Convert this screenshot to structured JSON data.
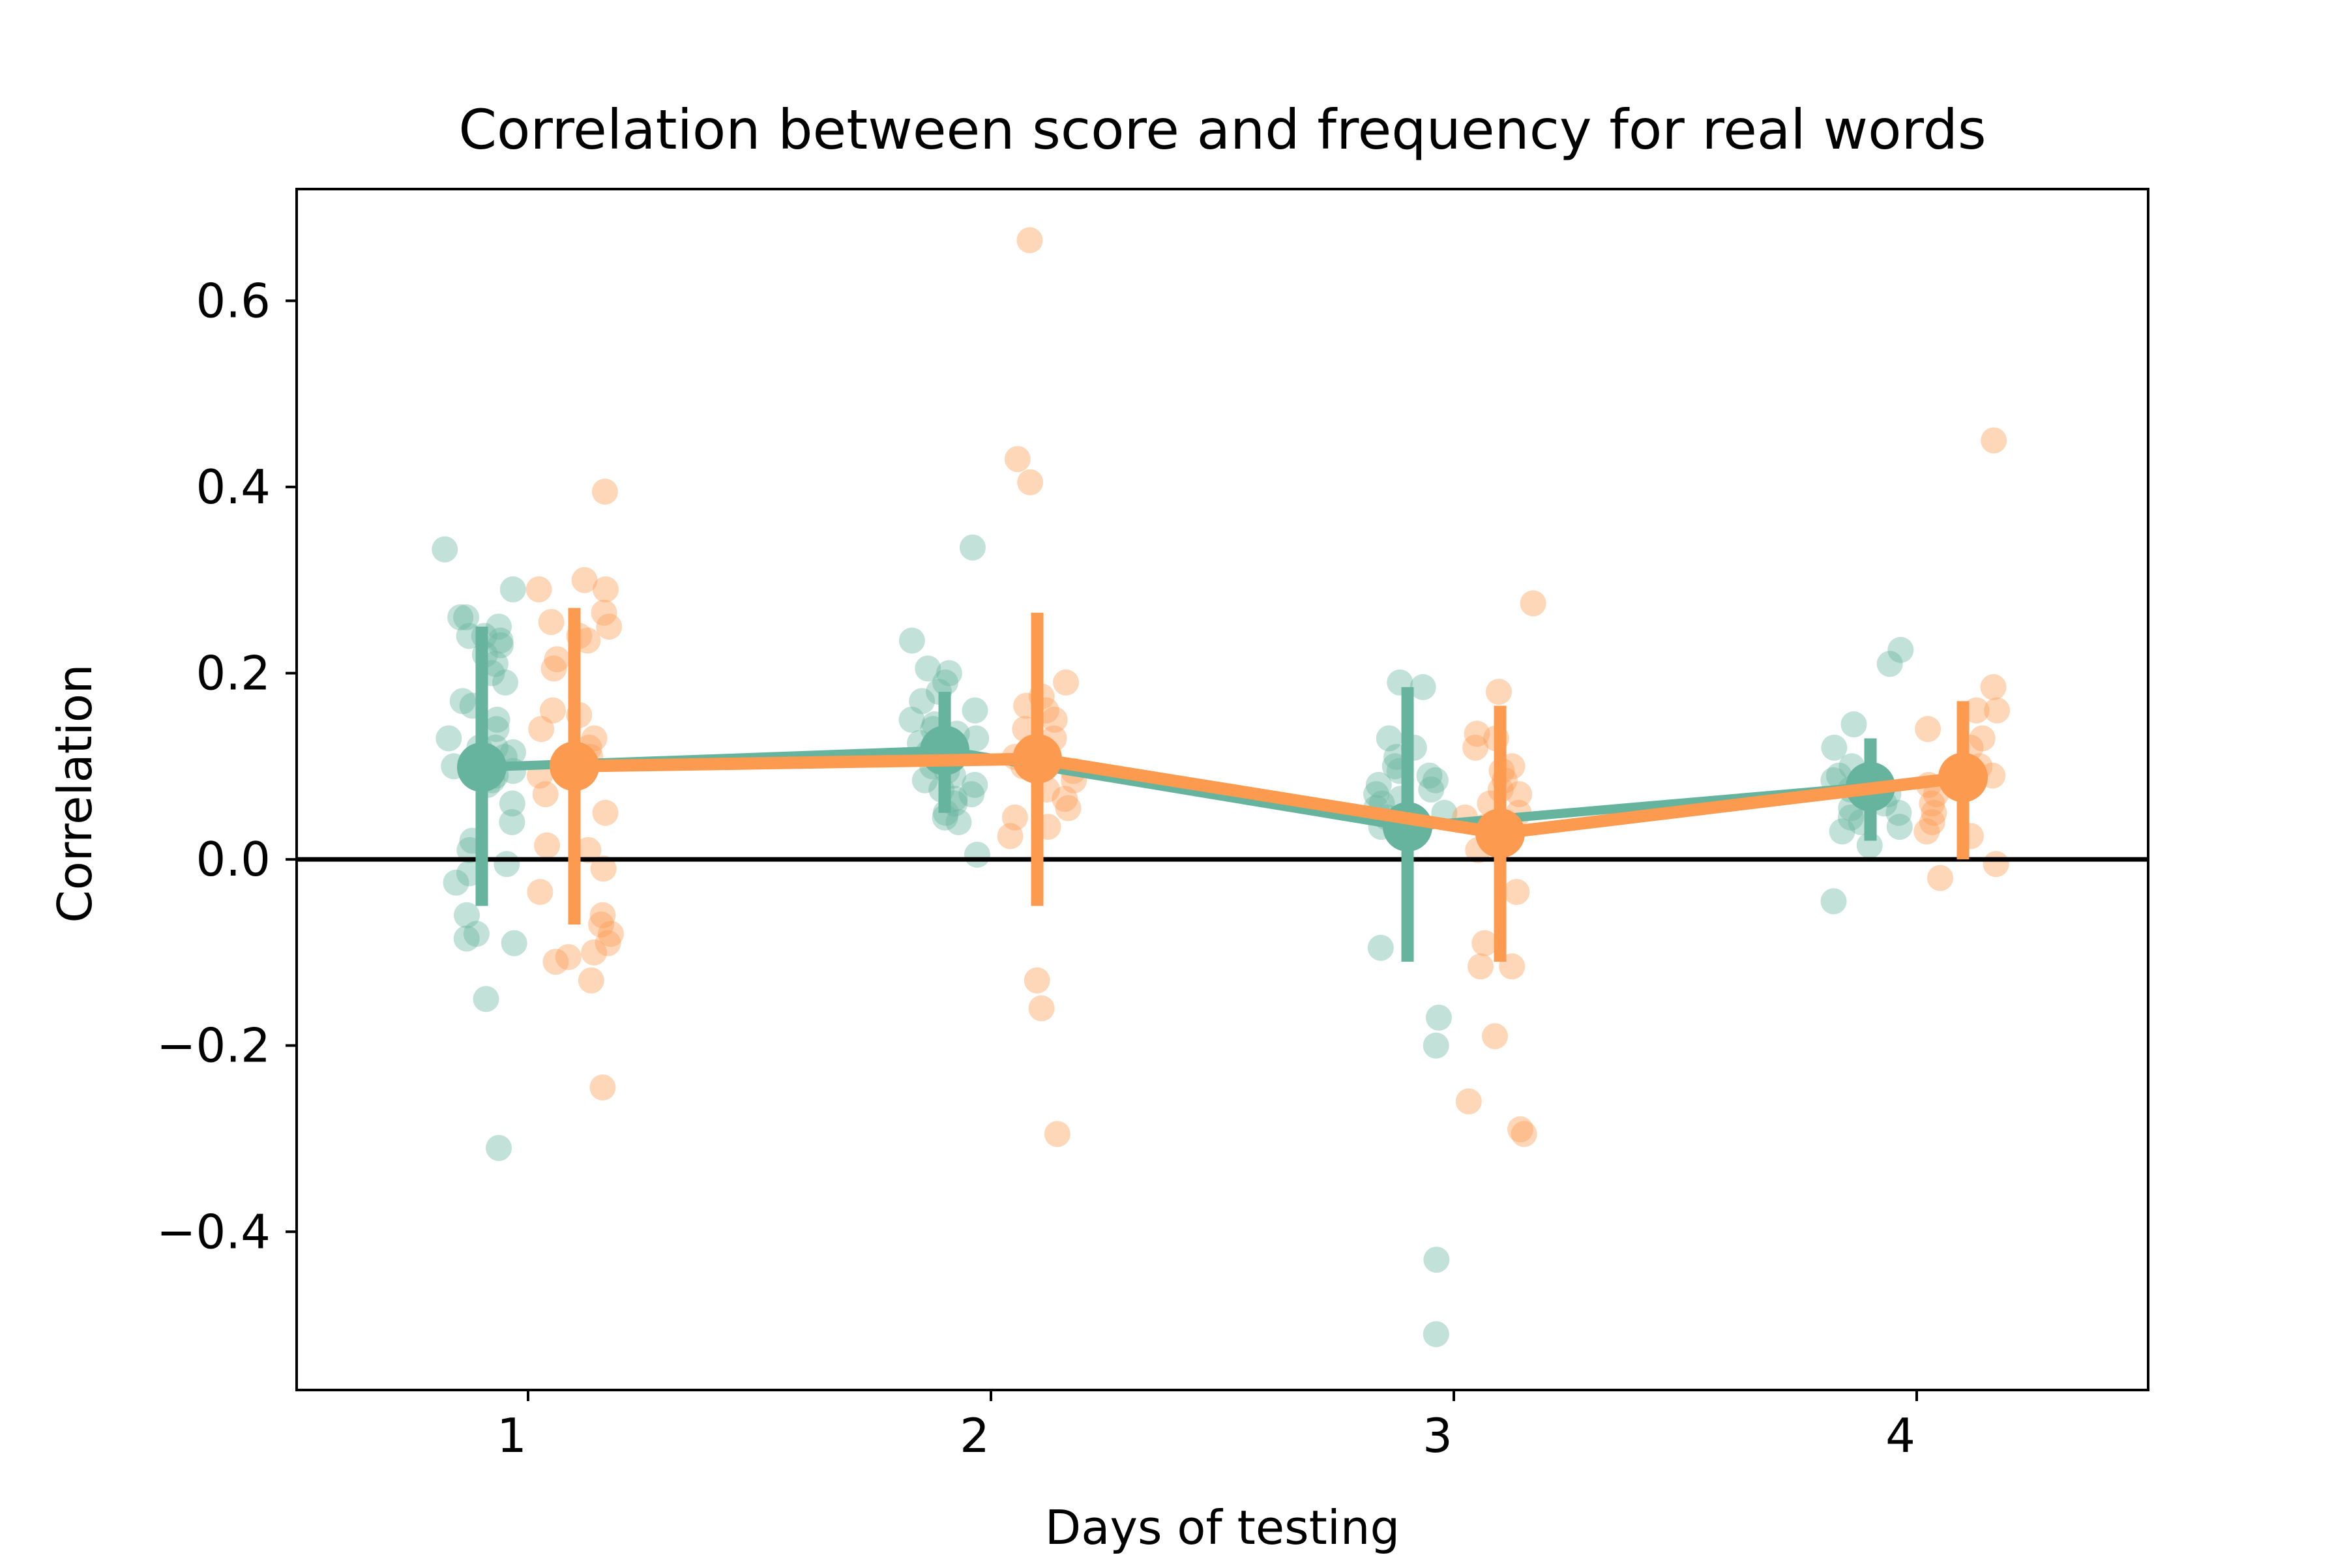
{
  "chart_data": {
    "type": "scatter",
    "title": "Correlation between score and frequency for real words",
    "xlabel": "Days of testing",
    "ylabel": "Correlation",
    "x_tick_labels": [
      "1",
      "2",
      "3",
      "4"
    ],
    "y_ticks": [
      -0.4,
      -0.2,
      0.0,
      0.2,
      0.4,
      0.6
    ],
    "y_tick_labels": [
      "−0.4",
      "−0.2",
      "0.0",
      "0.2",
      "0.4",
      "0.6"
    ],
    "ylim": [
      -0.57,
      0.72
    ],
    "reference_line": 0.0,
    "grid": false,
    "legend": "none",
    "series": [
      {
        "color": "#66b39e",
        "offset": -0.1,
        "mean": [
          0.099,
          0.117,
          0.035,
          0.078
        ],
        "ci": [
          [
            -0.05,
            0.25
          ],
          [
            0.05,
            0.18
          ],
          [
            -0.11,
            0.185
          ],
          [
            0.02,
            0.13
          ]
        ],
        "points": [
          [
            0.333,
            0.29,
            0.26,
            0.26,
            0.25,
            0.24,
            0.24,
            0.235,
            0.23,
            0.22,
            0.21,
            0.2,
            0.19,
            0.17,
            0.165,
            0.15,
            0.14,
            0.13,
            0.12,
            0.12,
            0.115,
            0.11,
            0.1,
            0.1,
            0.095,
            0.09,
            0.085,
            0.08,
            0.06,
            0.04,
            0.02,
            0.01,
            -0.005,
            -0.015,
            -0.025,
            -0.06,
            -0.08,
            -0.085,
            -0.09,
            -0.15,
            -0.31
          ],
          [
            0.335,
            0.235,
            0.205,
            0.2,
            0.19,
            0.18,
            0.17,
            0.16,
            0.15,
            0.145,
            0.14,
            0.135,
            0.13,
            0.13,
            0.125,
            0.12,
            0.115,
            0.11,
            0.105,
            0.1,
            0.095,
            0.09,
            0.085,
            0.08,
            0.075,
            0.07,
            0.065,
            0.06,
            0.05,
            0.045,
            0.04,
            0.005
          ],
          [
            0.19,
            0.185,
            0.13,
            0.12,
            0.11,
            0.1,
            0.095,
            0.09,
            0.085,
            0.08,
            0.075,
            0.07,
            0.065,
            0.06,
            0.055,
            0.05,
            0.045,
            0.04,
            0.035,
            0.03,
            0.025,
            -0.095,
            -0.17,
            -0.2,
            -0.43,
            -0.51
          ],
          [
            0.225,
            0.21,
            0.145,
            0.12,
            0.1,
            0.09,
            0.085,
            0.08,
            0.075,
            0.07,
            0.065,
            0.06,
            0.055,
            0.05,
            0.045,
            0.04,
            0.035,
            0.03,
            0.015,
            -0.045
          ]
        ]
      },
      {
        "color": "#fc9a4f",
        "offset": 0.1,
        "mean": [
          0.1,
          0.108,
          0.028,
          0.088
        ],
        "ci": [
          [
            -0.07,
            0.27
          ],
          [
            -0.05,
            0.265
          ],
          [
            -0.11,
            0.165
          ],
          [
            0.0,
            0.17
          ]
        ],
        "points": [
          [
            0.395,
            0.3,
            0.29,
            0.29,
            0.265,
            0.255,
            0.25,
            0.24,
            0.235,
            0.215,
            0.205,
            0.16,
            0.155,
            0.14,
            0.13,
            0.12,
            0.11,
            0.1,
            0.09,
            0.07,
            0.05,
            0.015,
            0.01,
            -0.01,
            -0.035,
            -0.06,
            -0.07,
            -0.08,
            -0.09,
            -0.1,
            -0.105,
            -0.11,
            -0.13,
            -0.245
          ],
          [
            0.665,
            0.43,
            0.405,
            0.19,
            0.175,
            0.165,
            0.16,
            0.15,
            0.14,
            0.13,
            0.12,
            0.11,
            0.1,
            0.095,
            0.085,
            0.075,
            0.065,
            0.055,
            0.045,
            0.035,
            0.025,
            -0.13,
            -0.16,
            -0.295
          ],
          [
            0.275,
            0.18,
            0.135,
            0.13,
            0.12,
            0.1,
            0.095,
            0.085,
            0.075,
            0.07,
            0.06,
            0.05,
            0.045,
            0.035,
            0.02,
            0.01,
            -0.035,
            -0.09,
            -0.115,
            -0.115,
            -0.19,
            -0.26,
            -0.29,
            -0.295
          ],
          [
            0.45,
            0.185,
            0.16,
            0.16,
            0.14,
            0.13,
            0.12,
            0.1,
            0.09,
            0.08,
            0.07,
            0.06,
            0.05,
            0.04,
            0.03,
            0.025,
            -0.005,
            -0.02
          ]
        ]
      }
    ]
  }
}
